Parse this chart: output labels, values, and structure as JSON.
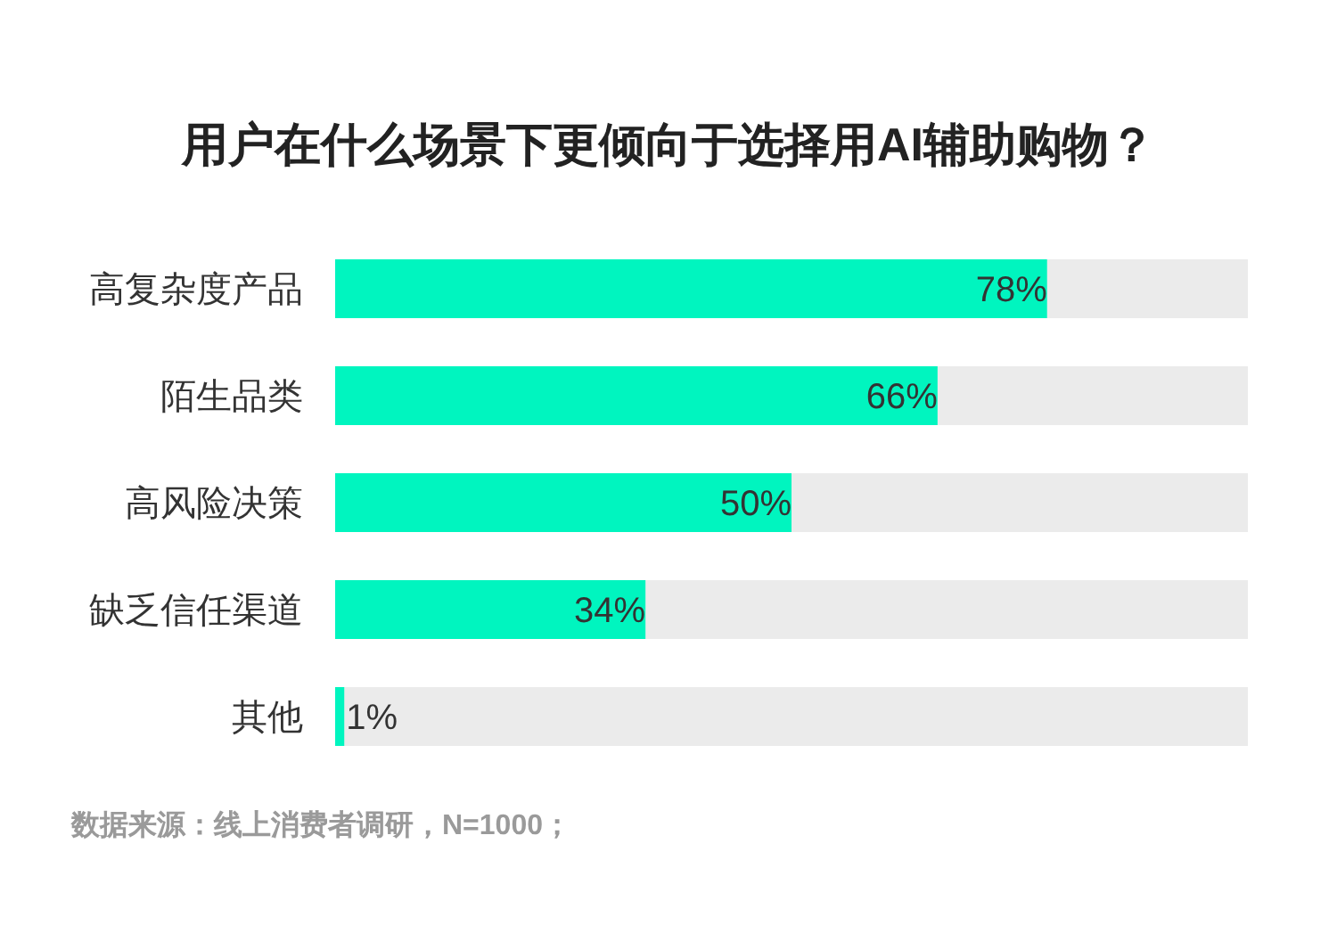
{
  "chart_data": {
    "type": "bar",
    "orientation": "horizontal",
    "title": "用户在什么场景下更倾向于选择用AI辅助购物？",
    "categories": [
      "高复杂度产品",
      "陌生品类",
      "高风险决策",
      "缺乏信任渠道",
      "其他"
    ],
    "values": [
      78,
      66,
      50,
      34,
      1
    ],
    "value_labels": [
      "78%",
      "66%",
      "50%",
      "34%",
      "1%"
    ],
    "color": "#00f5bf",
    "xlim": [
      0,
      100
    ],
    "tick_labels": "y",
    "annotations": [
      "数据来源：线上消费者调研，N=1000；"
    ]
  }
}
